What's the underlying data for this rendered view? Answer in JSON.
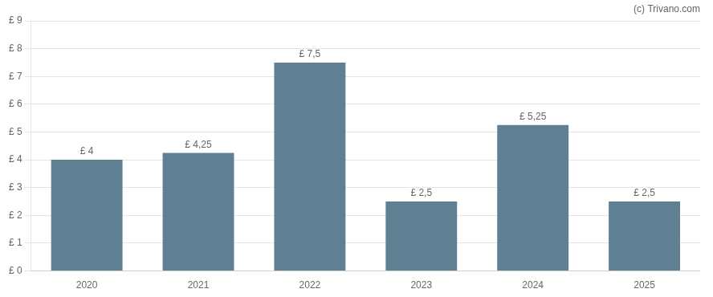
{
  "chart_data": {
    "type": "bar",
    "categories": [
      "2020",
      "2021",
      "2022",
      "2023",
      "2024",
      "2025"
    ],
    "values": [
      4.0,
      4.25,
      7.5,
      2.5,
      5.25,
      2.5
    ],
    "value_labels": [
      "£ 4",
      "£ 4,25",
      "£ 7,5",
      "£ 2,5",
      "£ 5,25",
      "£ 2,5"
    ],
    "data_labels": true,
    "color": "#5f7f93",
    "ylim": [
      0,
      9
    ],
    "yticks": [
      {
        "value": 0,
        "label": "£ 0"
      },
      {
        "value": 1,
        "label": "£ 1"
      },
      {
        "value": 2,
        "label": "£ 2"
      },
      {
        "value": 3,
        "label": "£ 3"
      },
      {
        "value": 4,
        "label": "£ 4"
      },
      {
        "value": 5,
        "label": "£ 5"
      },
      {
        "value": 6,
        "label": "£ 6"
      },
      {
        "value": 7,
        "label": "£ 7"
      },
      {
        "value": 8,
        "label": "£ 8"
      },
      {
        "value": 9,
        "label": "£ 9"
      }
    ],
    "grid": true,
    "annotations": [
      "(c) Trivano.com"
    ]
  }
}
